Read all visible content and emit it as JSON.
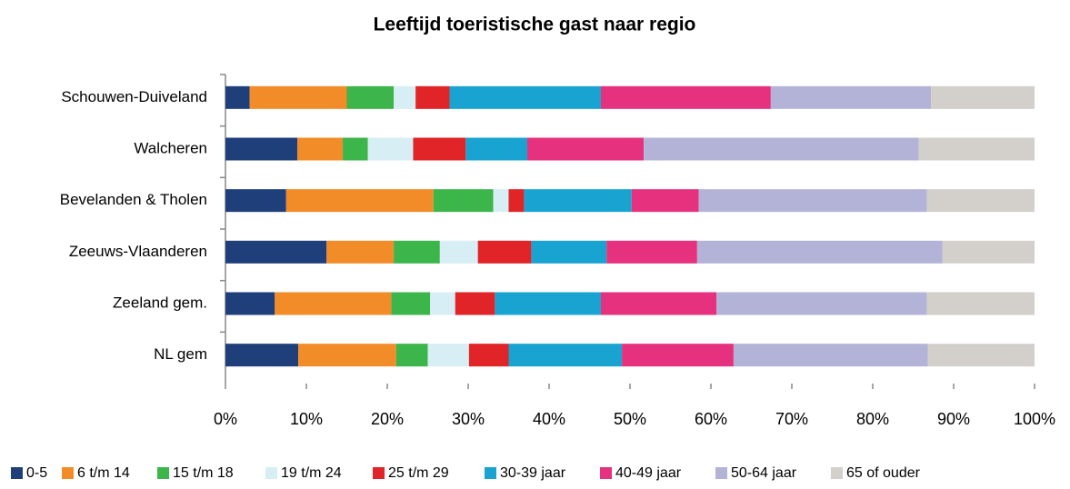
{
  "chart_data": {
    "type": "stacked-bar-horizontal",
    "title": "Leeftijd toeristische gast naar regio",
    "categories": [
      "Schouwen-Duiveland",
      "Walcheren",
      "Bevelanden & Tholen",
      "Zeeuws-Vlaanderen",
      "Zeeland gem.",
      "NL gem"
    ],
    "series": [
      {
        "name": "0-5",
        "color": "#1f3f7a",
        "values": [
          3.0,
          8.9,
          7.5,
          12.5,
          6.1,
          9.0
        ]
      },
      {
        "name": "6 t/m 14",
        "color": "#f28c28",
        "values": [
          12.0,
          5.6,
          18.2,
          8.3,
          14.4,
          12.1
        ]
      },
      {
        "name": "15 t/m 18",
        "color": "#3cb54a",
        "values": [
          5.8,
          3.1,
          7.4,
          5.7,
          4.8,
          3.9
        ]
      },
      {
        "name": "19 t/m 24",
        "color": "#d6eef4",
        "values": [
          2.7,
          5.6,
          1.9,
          4.7,
          3.1,
          5.1
        ]
      },
      {
        "name": "25 t/m 29",
        "color": "#e02428",
        "values": [
          4.2,
          6.5,
          1.9,
          6.6,
          4.9,
          4.9
        ]
      },
      {
        "name": "30-39 jaar",
        "color": "#19a3d1",
        "values": [
          18.7,
          7.6,
          13.3,
          9.3,
          13.1,
          14.0
        ]
      },
      {
        "name": "40-49 jaar",
        "color": "#e6317e",
        "values": [
          21.0,
          14.4,
          8.3,
          11.2,
          14.3,
          13.8
        ]
      },
      {
        "name": "50-64 jaar",
        "color": "#b3b3d8",
        "values": [
          19.8,
          34.0,
          28.2,
          30.3,
          26.0,
          24.0
        ]
      },
      {
        "name": "65 of ouder",
        "color": "#d3d0cc",
        "values": [
          12.8,
          14.3,
          13.3,
          11.4,
          13.3,
          13.2
        ]
      }
    ],
    "xlim": [
      0,
      100
    ],
    "xticks": [
      {
        "value": 0,
        "label": "0%"
      },
      {
        "value": 10,
        "label": "10%"
      },
      {
        "value": 20,
        "label": "20%"
      },
      {
        "value": 30,
        "label": "30%"
      },
      {
        "value": 40,
        "label": "40%"
      },
      {
        "value": 50,
        "label": "50%"
      },
      {
        "value": 60,
        "label": "60%"
      },
      {
        "value": 70,
        "label": "70%"
      },
      {
        "value": 80,
        "label": "80%"
      },
      {
        "value": 90,
        "label": "90%"
      },
      {
        "value": 100,
        "label": "100%"
      }
    ],
    "legend": "bottom"
  }
}
